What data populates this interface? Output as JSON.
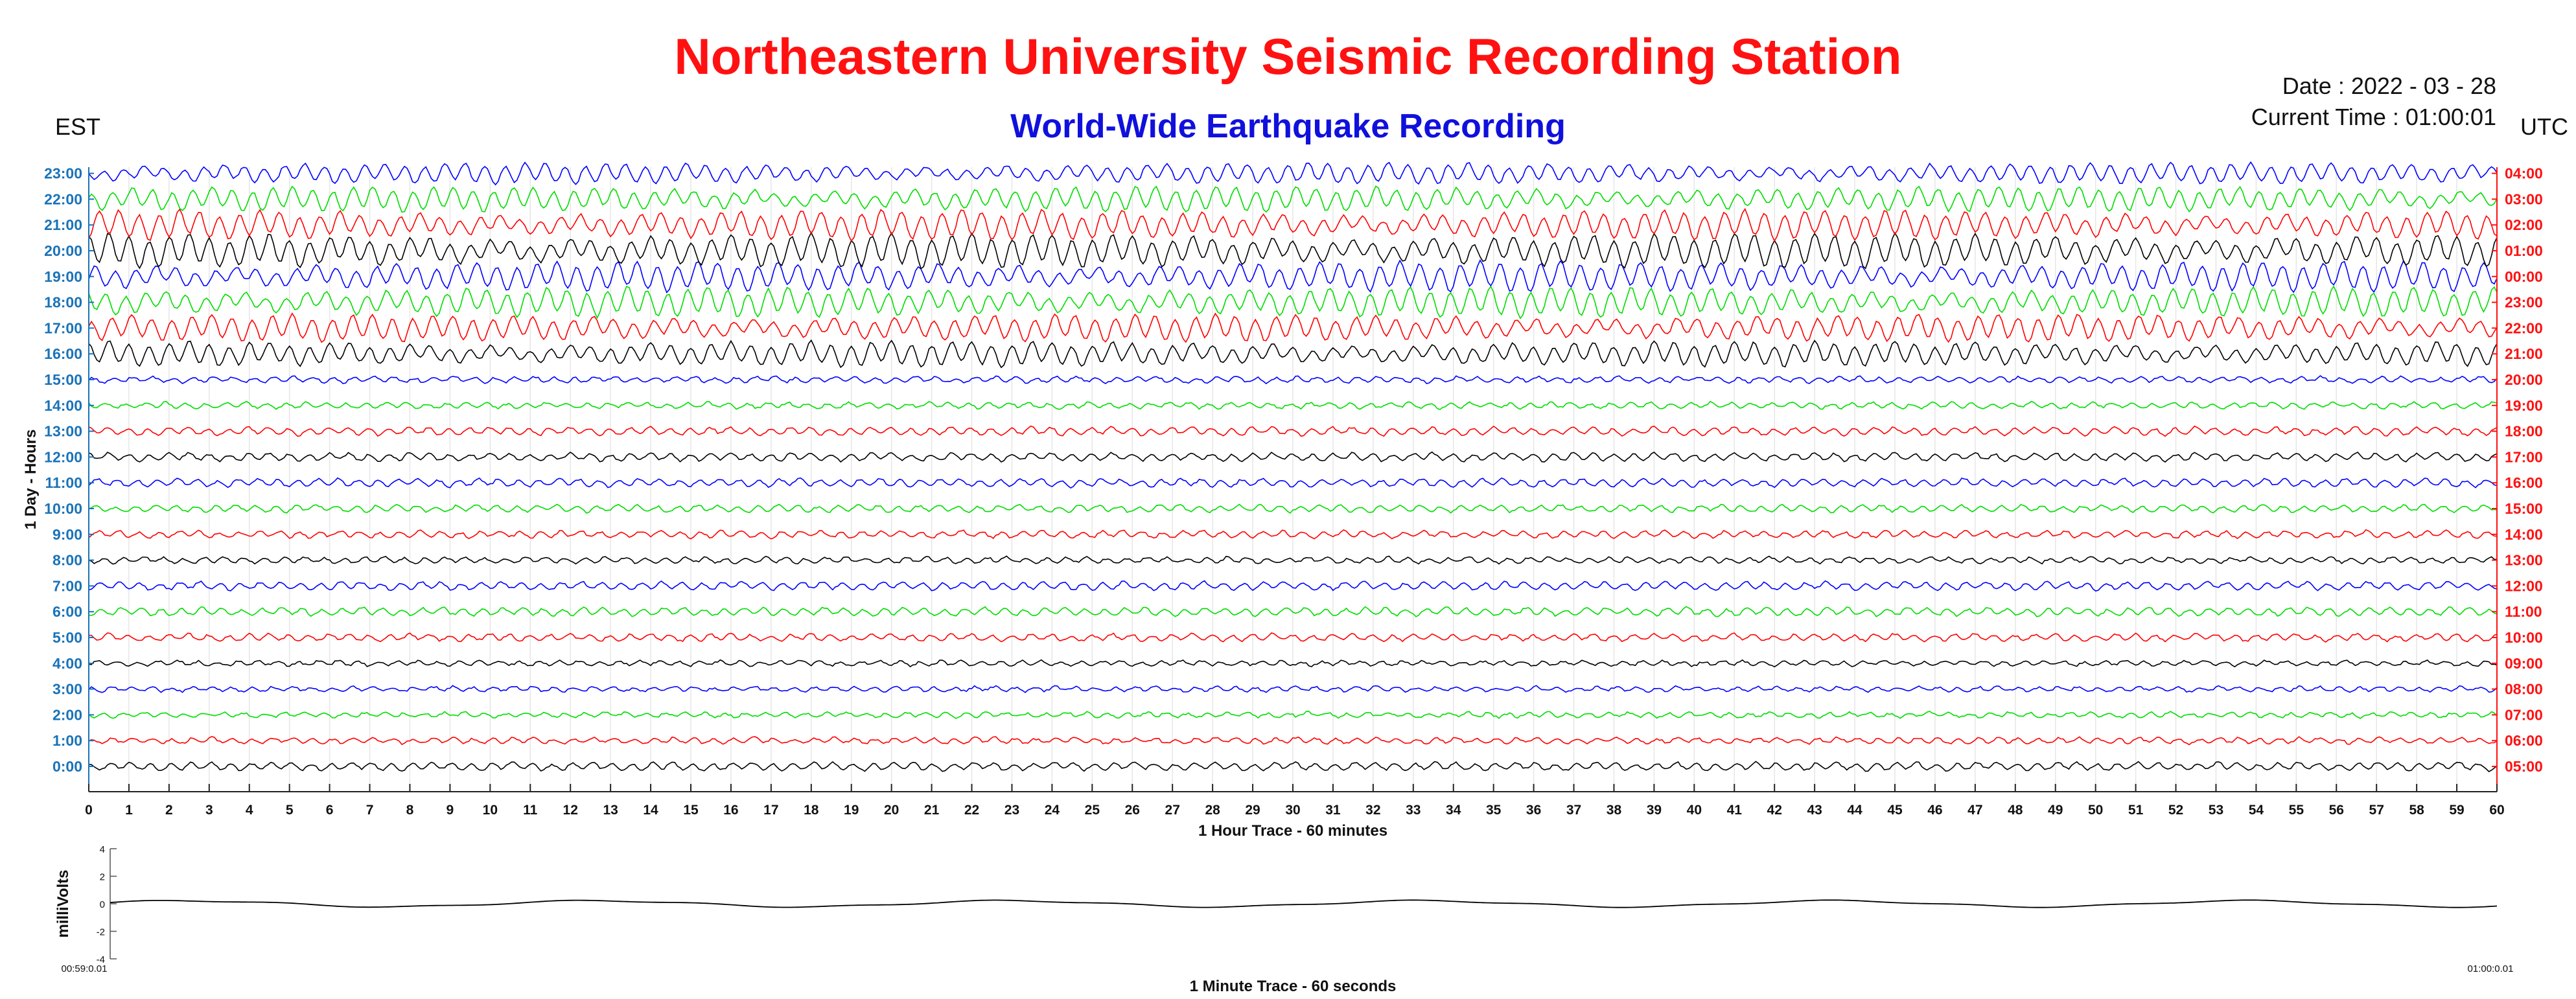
{
  "header": {
    "title": "Northeastern University Seismic Recording Station",
    "subtitle": "World-Wide Earthquake Recording",
    "date_label": "Date : 2022 - 03 - 28",
    "time_label": "Current Time : 01:00:01",
    "left_tz": "EST",
    "right_tz": "UTC"
  },
  "colors": {
    "title": "#ff1111",
    "subtitle": "#1010dd",
    "left_hour_labels": "#1a73b8",
    "right_hour_labels": "#ff1111",
    "trace_cycle": [
      "#000000",
      "#0000ff",
      "#00dd00",
      "#ff0000"
    ]
  },
  "chart_data": [
    {
      "type": "line",
      "name": "helicorder",
      "xlabel": "1 Hour Trace - 60 minutes",
      "ylabel": "1 Day - Hours",
      "xlim": [
        0,
        60
      ],
      "x_ticks": [
        "0",
        "1",
        "2",
        "3",
        "4",
        "5",
        "6",
        "7",
        "8",
        "9",
        "10",
        "11",
        "12",
        "13",
        "14",
        "15",
        "16",
        "17",
        "18",
        "19",
        "20",
        "21",
        "22",
        "23",
        "24",
        "25",
        "26",
        "27",
        "28",
        "29",
        "30",
        "31",
        "32",
        "33",
        "34",
        "35",
        "36",
        "37",
        "38",
        "39",
        "40",
        "41",
        "42",
        "43",
        "44",
        "45",
        "46",
        "47",
        "48",
        "49",
        "50",
        "51",
        "52",
        "53",
        "54",
        "55",
        "56",
        "57",
        "58",
        "59",
        "60"
      ],
      "grid": "vertical",
      "rows": [
        {
          "est": "0:00",
          "utc": "05:00",
          "color": "#000000",
          "amplitude": 0.8
        },
        {
          "est": "1:00",
          "utc": "06:00",
          "color": "#ff0000",
          "amplitude": 0.6
        },
        {
          "est": "2:00",
          "utc": "07:00",
          "color": "#00dd00",
          "amplitude": 0.5
        },
        {
          "est": "3:00",
          "utc": "08:00",
          "color": "#0000ff",
          "amplitude": 0.5
        },
        {
          "est": "4:00",
          "utc": "09:00",
          "color": "#000000",
          "amplitude": 0.5
        },
        {
          "est": "5:00",
          "utc": "10:00",
          "color": "#ff0000",
          "amplitude": 0.7
        },
        {
          "est": "6:00",
          "utc": "11:00",
          "color": "#00dd00",
          "amplitude": 0.8
        },
        {
          "est": "7:00",
          "utc": "12:00",
          "color": "#0000ff",
          "amplitude": 0.8
        },
        {
          "est": "8:00",
          "utc": "13:00",
          "color": "#000000",
          "amplitude": 0.6
        },
        {
          "est": "9:00",
          "utc": "14:00",
          "color": "#ff0000",
          "amplitude": 0.7
        },
        {
          "est": "10:00",
          "utc": "15:00",
          "color": "#00dd00",
          "amplitude": 0.7
        },
        {
          "est": "11:00",
          "utc": "16:00",
          "color": "#0000ff",
          "amplitude": 0.8
        },
        {
          "est": "12:00",
          "utc": "17:00",
          "color": "#000000",
          "amplitude": 0.8
        },
        {
          "est": "13:00",
          "utc": "18:00",
          "color": "#ff0000",
          "amplitude": 0.8
        },
        {
          "est": "14:00",
          "utc": "19:00",
          "color": "#00dd00",
          "amplitude": 0.6
        },
        {
          "est": "15:00",
          "utc": "20:00",
          "color": "#0000ff",
          "amplitude": 0.6
        },
        {
          "est": "16:00",
          "utc": "21:00",
          "color": "#000000",
          "amplitude": 2.2
        },
        {
          "est": "17:00",
          "utc": "22:00",
          "color": "#ff0000",
          "amplitude": 2.4
        },
        {
          "est": "18:00",
          "utc": "23:00",
          "color": "#00dd00",
          "amplitude": 2.6
        },
        {
          "est": "19:00",
          "utc": "00:00",
          "color": "#0000ff",
          "amplitude": 2.6
        },
        {
          "est": "20:00",
          "utc": "01:00",
          "color": "#000000",
          "amplitude": 3.0
        },
        {
          "est": "21:00",
          "utc": "02:00",
          "color": "#ff0000",
          "amplitude": 2.6
        },
        {
          "est": "22:00",
          "utc": "03:00",
          "color": "#00dd00",
          "amplitude": 2.2
        },
        {
          "est": "23:00",
          "utc": "04:00",
          "color": "#0000ff",
          "amplitude": 1.8
        }
      ]
    },
    {
      "type": "line",
      "name": "minute-trace",
      "xlabel": "1 Minute Trace  - 60 seconds",
      "ylabel": "milliVolts",
      "ylim": [
        -4,
        4
      ],
      "y_ticks": [
        "4",
        "2",
        "0",
        "-2",
        "-4"
      ],
      "x_start_label": "00:59:0.01",
      "x_end_label": "01:00:0.01",
      "color": "#000000"
    }
  ]
}
